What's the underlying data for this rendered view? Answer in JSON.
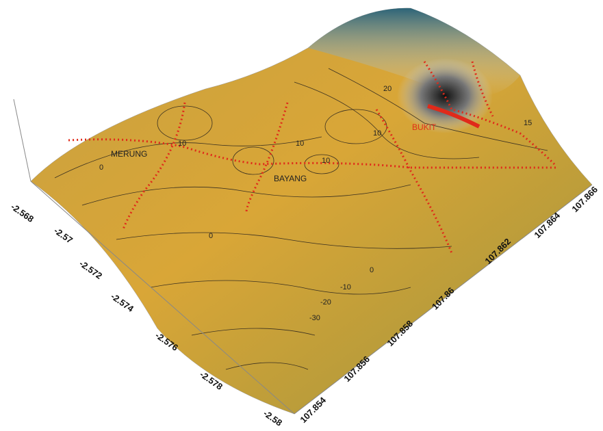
{
  "map": {
    "places": [
      "MERUNG",
      "BAYANG",
      "BUKIT"
    ],
    "lat_axis": {
      "ticks": [
        "-2.568",
        "-2.57",
        "-2.572",
        "-2.574",
        "-2.576",
        "-2.578",
        "-2.58"
      ]
    },
    "lon_axis": {
      "ticks": [
        "107.854",
        "107.856",
        "107.858",
        "107.86",
        "107.862",
        "107.864",
        "107.866"
      ]
    },
    "contour_labels": [
      "0",
      "0",
      "0",
      "-10",
      "-20",
      "-30",
      "10",
      "10",
      "10",
      "20",
      "15",
      "10"
    ]
  }
}
